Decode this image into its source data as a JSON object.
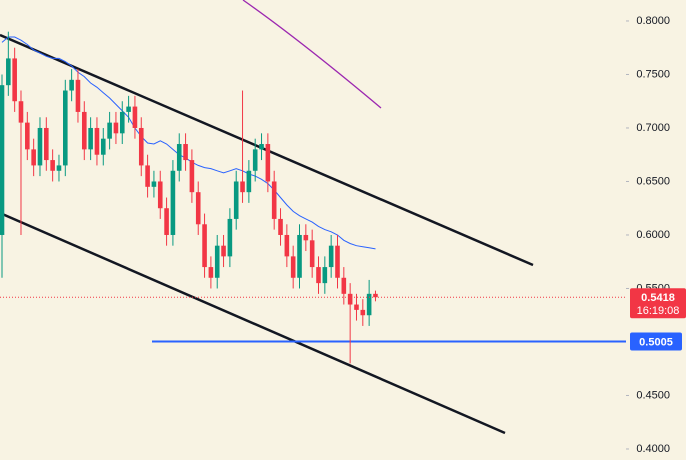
{
  "chart_data": {
    "type": "candlestick",
    "open": [
      0.6,
      0.74,
      0.765,
      0.725,
      0.705,
      0.68,
      0.665,
      0.7,
      0.67,
      0.66,
      0.665,
      0.735,
      0.745,
      0.715,
      0.68,
      0.7,
      0.675,
      0.69,
      0.705,
      0.695,
      0.715,
      0.72,
      0.7,
      0.665,
      0.645,
      0.65,
      0.625,
      0.6,
      0.66,
      0.685,
      0.67,
      0.64,
      0.61,
      0.57,
      0.56,
      0.59,
      0.58,
      0.615,
      0.65,
      0.64,
      0.66,
      0.68,
      0.685,
      0.65,
      0.615,
      0.6,
      0.58,
      0.56,
      0.6,
      0.595,
      0.57,
      0.555,
      0.57,
      0.59,
      0.56,
      0.545,
      0.535,
      0.53,
      0.525,
      0.545
    ],
    "high": [
      0.75,
      0.79,
      0.775,
      0.735,
      0.715,
      0.69,
      0.71,
      0.71,
      0.68,
      0.675,
      0.745,
      0.755,
      0.755,
      0.725,
      0.71,
      0.71,
      0.7,
      0.715,
      0.715,
      0.725,
      0.73,
      0.73,
      0.71,
      0.675,
      0.66,
      0.66,
      0.635,
      0.67,
      0.695,
      0.695,
      0.68,
      0.65,
      0.62,
      0.58,
      0.6,
      0.6,
      0.625,
      0.66,
      0.735,
      0.67,
      0.69,
      0.695,
      0.695,
      0.66,
      0.625,
      0.61,
      0.59,
      0.61,
      0.61,
      0.605,
      0.58,
      0.58,
      0.6,
      0.6,
      0.57,
      0.555,
      0.545,
      0.54,
      0.558,
      0.548
    ],
    "low": [
      0.56,
      0.73,
      0.715,
      0.6,
      0.67,
      0.655,
      0.655,
      0.66,
      0.65,
      0.65,
      0.655,
      0.725,
      0.705,
      0.67,
      0.67,
      0.665,
      0.665,
      0.68,
      0.685,
      0.685,
      0.705,
      0.69,
      0.655,
      0.635,
      0.635,
      0.615,
      0.59,
      0.59,
      0.65,
      0.66,
      0.63,
      0.6,
      0.56,
      0.55,
      0.55,
      0.57,
      0.57,
      0.605,
      0.63,
      0.63,
      0.65,
      0.67,
      0.64,
      0.605,
      0.59,
      0.57,
      0.55,
      0.55,
      0.585,
      0.56,
      0.545,
      0.545,
      0.56,
      0.55,
      0.535,
      0.48,
      0.52,
      0.515,
      0.515,
      0.538
    ],
    "close": [
      0.74,
      0.765,
      0.725,
      0.705,
      0.68,
      0.665,
      0.7,
      0.67,
      0.66,
      0.665,
      0.735,
      0.745,
      0.715,
      0.68,
      0.7,
      0.675,
      0.69,
      0.705,
      0.695,
      0.715,
      0.72,
      0.7,
      0.665,
      0.645,
      0.65,
      0.625,
      0.6,
      0.66,
      0.685,
      0.67,
      0.64,
      0.61,
      0.57,
      0.56,
      0.59,
      0.58,
      0.615,
      0.65,
      0.64,
      0.66,
      0.68,
      0.685,
      0.65,
      0.615,
      0.6,
      0.58,
      0.56,
      0.6,
      0.595,
      0.57,
      0.555,
      0.57,
      0.59,
      0.56,
      0.545,
      0.535,
      0.53,
      0.525,
      0.545,
      0.5418
    ],
    "ma": [
      0.78,
      0.785,
      0.785,
      0.782,
      0.778,
      0.773,
      0.77,
      0.767,
      0.765,
      0.765,
      0.762,
      0.758,
      0.752,
      0.748,
      0.742,
      0.738,
      0.733,
      0.728,
      0.722,
      0.716,
      0.71,
      0.7,
      0.692,
      0.686,
      0.685,
      0.688,
      0.685,
      0.68,
      0.675,
      0.672,
      0.668,
      0.665,
      0.663,
      0.662,
      0.66,
      0.658,
      0.66,
      0.662,
      0.66,
      0.657,
      0.655,
      0.652,
      0.648,
      0.642,
      0.635,
      0.628,
      0.622,
      0.618,
      0.615,
      0.612,
      0.608,
      0.605,
      0.603,
      0.6,
      0.595,
      0.592,
      0.59,
      0.589,
      0.588,
      0.587
    ],
    "up_color": "#089981",
    "down_color": "#f23645",
    "ma_color": "#2962ff",
    "ylim": [
      0.3897,
      0.8196
    ],
    "yticks": [
      {
        "value": 0.8,
        "label": "0.8000"
      },
      {
        "value": 0.75,
        "label": "0.7500"
      },
      {
        "value": 0.7,
        "label": "0.7000"
      },
      {
        "value": 0.65,
        "label": "0.6500"
      },
      {
        "value": 0.6,
        "label": "0.6000"
      },
      {
        "value": 0.55,
        "label": "0.5500"
      },
      {
        "value": 0.45,
        "label": "0.4500"
      },
      {
        "value": 0.4,
        "label": "0.4000"
      }
    ],
    "last_price": 0.5418,
    "countdown": "16:19:08",
    "level": 0.5005,
    "level_color": "#2962ff"
  }
}
